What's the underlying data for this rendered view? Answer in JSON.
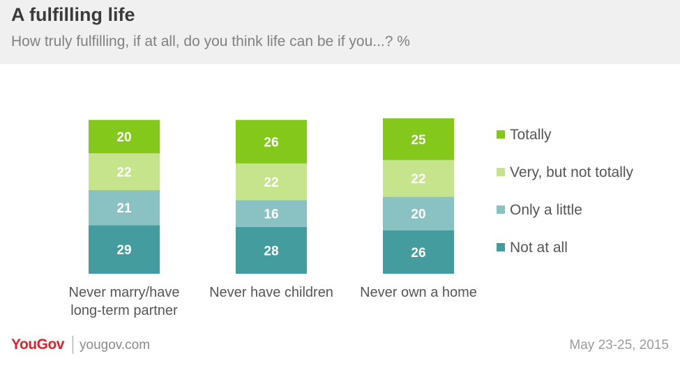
{
  "header": {
    "title": "A fulfilling life",
    "subtitle": "How truly fulfilling, if at all, do you think life can be if you...? %"
  },
  "chart_data": {
    "type": "bar",
    "stacked": true,
    "title": "A fulfilling life",
    "subtitle": "How truly fulfilling, if at all, do you think life can be if you...? %",
    "categories": [
      [
        "Never marry/have",
        "long-term partner"
      ],
      [
        "Never have children"
      ],
      [
        "Never own a home"
      ]
    ],
    "series": [
      {
        "name": "Not at all",
        "color": "#459c9e",
        "values": [
          29,
          28,
          26
        ]
      },
      {
        "name": "Only a little",
        "color": "#8ac1c2",
        "values": [
          21,
          16,
          20
        ]
      },
      {
        "name": "Very, but not totally",
        "color": "#c6e48b",
        "values": [
          22,
          22,
          22
        ]
      },
      {
        "name": "Totally",
        "color": "#84c81b",
        "values": [
          20,
          26,
          25
        ]
      }
    ],
    "legend_order": [
      "Totally",
      "Very, but not totally",
      "Only a little",
      "Not at all"
    ],
    "legend_position": "right",
    "grid": false,
    "xlabel": "",
    "ylabel": ""
  },
  "footer": {
    "brand": "YouGov",
    "site": "yougov.com",
    "date": "May 23-25, 2015"
  }
}
